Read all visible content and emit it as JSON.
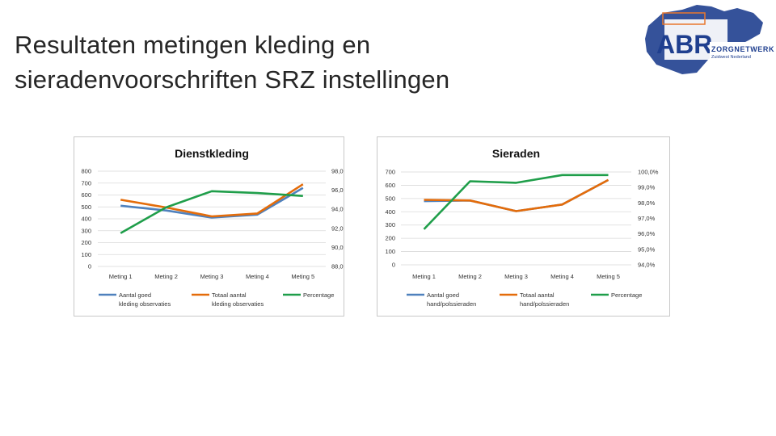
{
  "slide": {
    "title_line1": "Resultaten metingen kleding en",
    "title_line2": "sieradenvoorschriften SRZ instellingen"
  },
  "logo": {
    "abbr": "ABR",
    "name": "ZORGNETWERK",
    "region": "Zuidwest Nederland"
  },
  "colors": {
    "series_blue": "#4f81bd",
    "series_orange": "#e46c0a",
    "series_green": "#1f9e4a",
    "grid": "#d9d9d9",
    "logo_blue": "#1f3f8f",
    "logo_orange": "#e8772e"
  },
  "chart_data": [
    {
      "type": "line",
      "title": "Dienstkleding",
      "categories": [
        "Meting 1",
        "Meting 2",
        "Meting 3",
        "Meting 4",
        "Meting 5"
      ],
      "y_left": {
        "ylim": [
          0,
          800
        ],
        "ticks": [
          "0",
          "100",
          "200",
          "300",
          "400",
          "500",
          "600",
          "700",
          "800"
        ]
      },
      "y_right": {
        "ylim": [
          88,
          98
        ],
        "ticks": [
          "88,0%",
          "90,0%",
          "92,0%",
          "94,0%",
          "96,0%",
          "98,0%"
        ]
      },
      "grid": true,
      "legend_position": "bottom",
      "series": [
        {
          "name": "Aantal goed kleding  observaties",
          "legend_lines": [
            "Aantal goed",
            "kleding  observaties"
          ],
          "axis": "left",
          "color": "#4f81bd",
          "values": [
            510,
            470,
            410,
            435,
            660
          ]
        },
        {
          "name": "Totaal aantal kleding observaties",
          "legend_lines": [
            "Totaal aantal",
            "kleding observaties"
          ],
          "axis": "left",
          "color": "#e46c0a",
          "values": [
            560,
            495,
            420,
            445,
            690
          ]
        },
        {
          "name": "Percentage",
          "legend_lines": [
            "Percentage"
          ],
          "axis": "right",
          "color": "#1f9e4a",
          "values": [
            91.5,
            94.2,
            95.9,
            95.7,
            95.4
          ]
        }
      ]
    },
    {
      "type": "line",
      "title": "Sieraden",
      "categories": [
        "Meting 1",
        "Meting 2",
        "Meting 3",
        "Meting 4",
        "Meting 5"
      ],
      "y_left": {
        "ylim": [
          0,
          700
        ],
        "ticks": [
          "0",
          "100",
          "200",
          "300",
          "400",
          "500",
          "600",
          "700"
        ]
      },
      "y_right": {
        "ylim": [
          94,
          100
        ],
        "ticks": [
          "94,0%",
          "95,0%",
          "96,0%",
          "97,0%",
          "98,0%",
          "99,0%",
          "100,0%"
        ]
      },
      "grid": true,
      "legend_position": "bottom",
      "series": [
        {
          "name": "Aantal goed hand/polssieraden",
          "legend_lines": [
            "Aantal goed",
            "hand/polssieraden"
          ],
          "axis": "left",
          "color": "#4f81bd",
          "values": [
            480,
            485,
            405,
            455,
            640
          ]
        },
        {
          "name": "Totaal aantal hand/polssieraden",
          "legend_lines": [
            "Totaal aantal",
            "hand/polssieraden"
          ],
          "axis": "left",
          "color": "#e46c0a",
          "values": [
            490,
            485,
            405,
            455,
            640
          ]
        },
        {
          "name": "Percentage",
          "legend_lines": [
            "Percentage"
          ],
          "axis": "right",
          "color": "#1f9e4a",
          "values": [
            96.3,
            99.4,
            99.3,
            99.8,
            99.8
          ]
        }
      ]
    }
  ]
}
